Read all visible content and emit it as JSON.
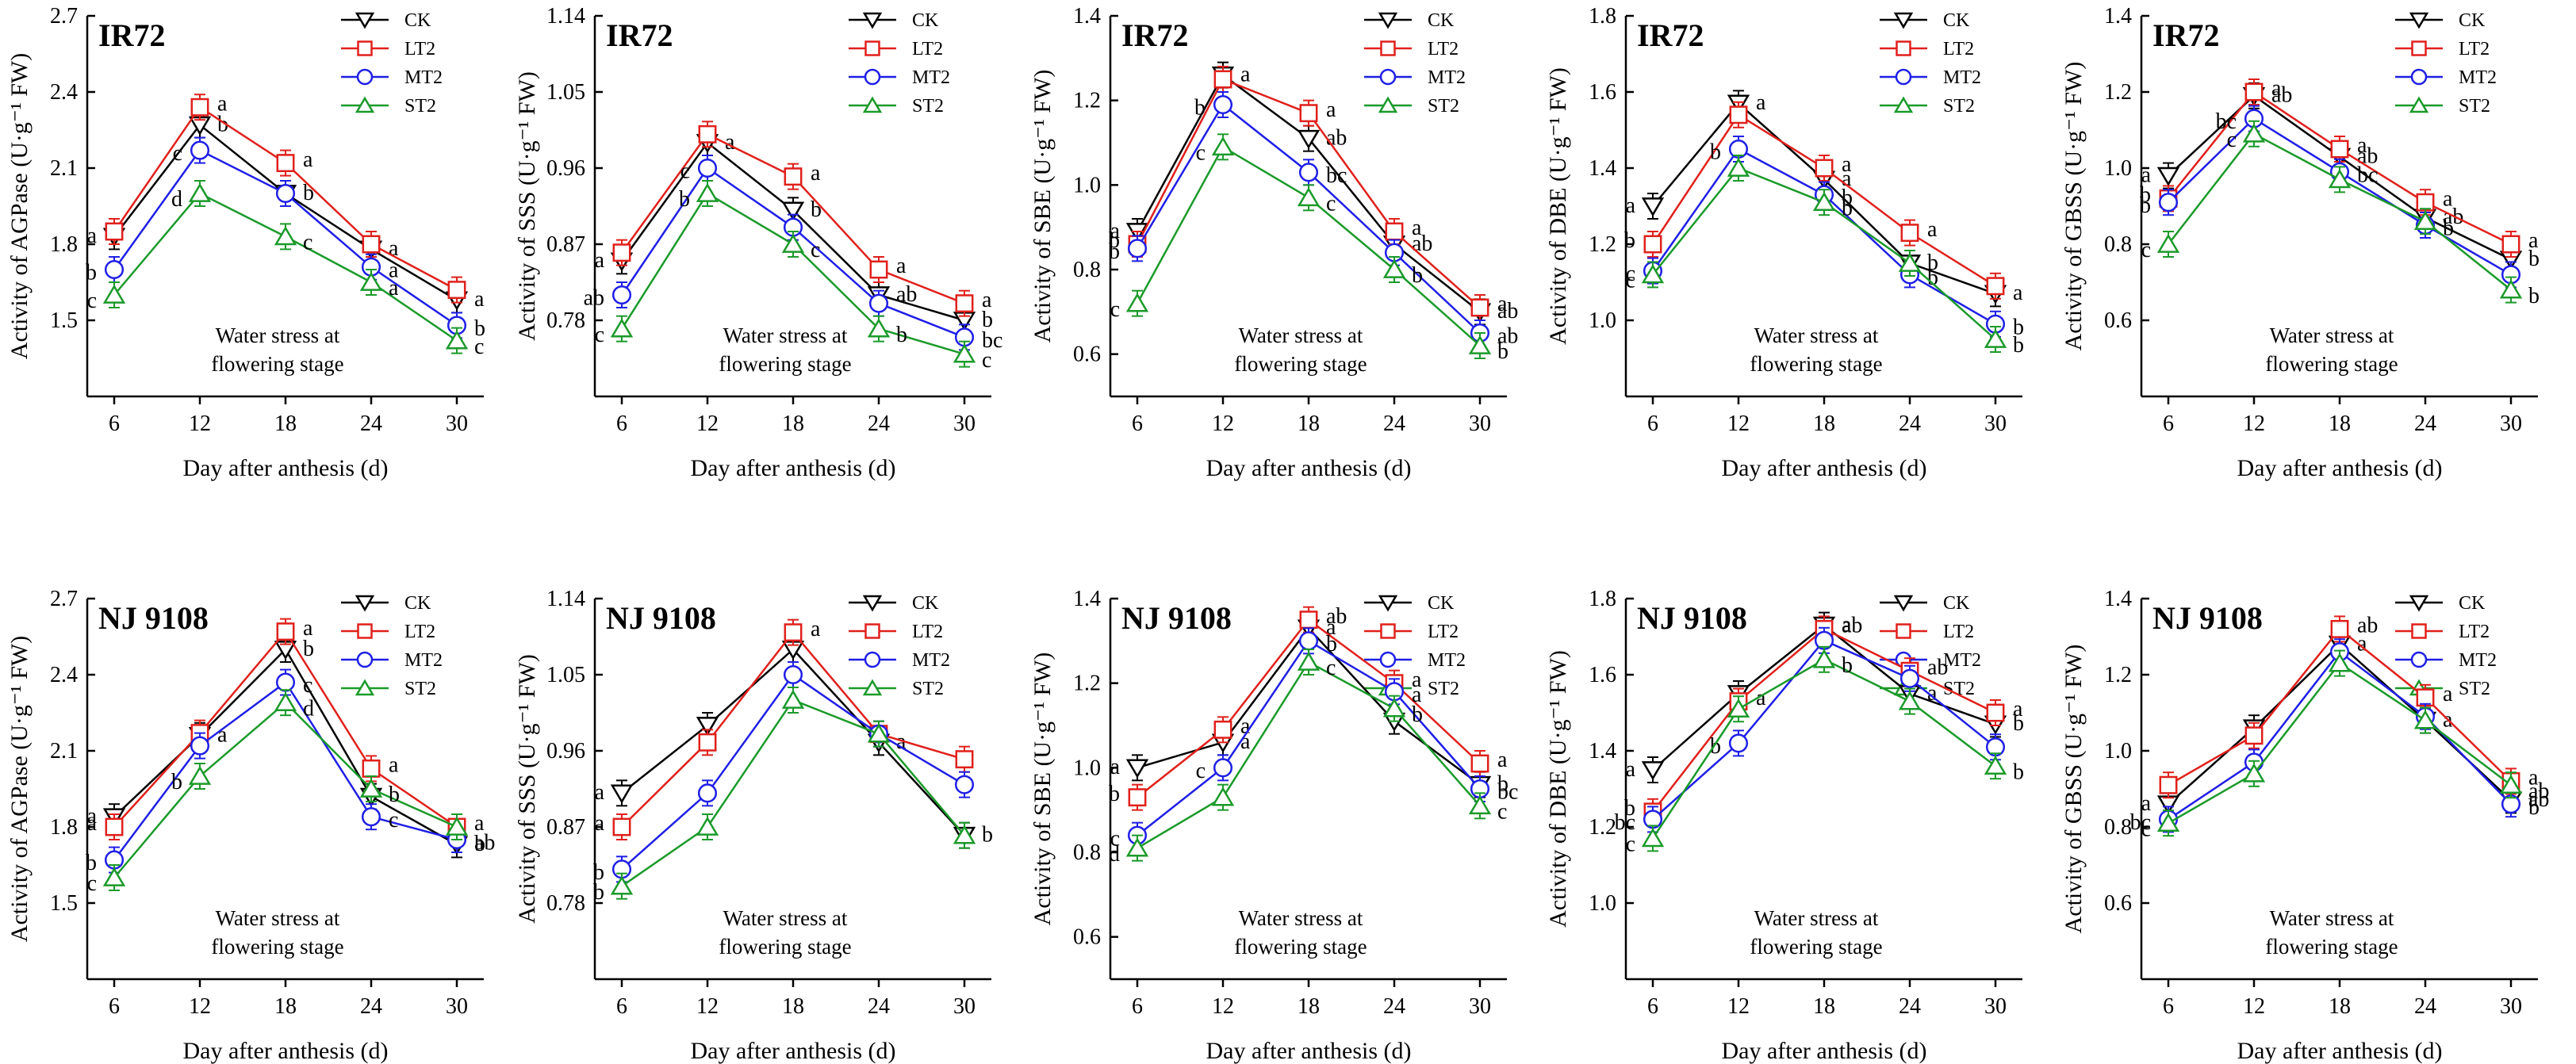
{
  "figure": {
    "xlabel": "Day after anthesis (d)",
    "annotation": [
      "Water stress at",
      "flowering stage"
    ],
    "legend": [
      "CK",
      "LT2",
      "MT2",
      "ST2"
    ],
    "colors": {
      "CK": "#000000",
      "LT2": "#e0201b",
      "MT2": "#1f1fe6",
      "ST2": "#1b9a2a"
    }
  },
  "chart_data": [
    {
      "type": "line",
      "title": "IR72",
      "ylabel": "Activity of AGPase (U·g⁻¹ FW)",
      "x": [
        6,
        12,
        18,
        24,
        30
      ],
      "ylim": [
        1.2,
        2.7
      ],
      "yticks": [
        "1.5",
        "1.8",
        "2.1",
        "2.4",
        "2.7"
      ],
      "series": [
        {
          "name": "CK",
          "values": [
            1.83,
            2.27,
            2.0,
            1.78,
            1.58
          ],
          "sig": [
            "a",
            "b",
            "b",
            "a",
            "a"
          ]
        },
        {
          "name": "LT2",
          "values": [
            1.85,
            2.34,
            2.12,
            1.8,
            1.62
          ],
          "sig": [
            "",
            "a",
            "a",
            "",
            ""
          ]
        },
        {
          "name": "MT2",
          "values": [
            1.7,
            2.17,
            2.0,
            1.71,
            1.48
          ],
          "sig": [
            "b",
            "c",
            "",
            "a",
            "b"
          ]
        },
        {
          "name": "ST2",
          "values": [
            1.6,
            2.0,
            1.83,
            1.65,
            1.42
          ],
          "sig": [
            "c",
            "d",
            "c",
            "a",
            "c"
          ]
        }
      ]
    },
    {
      "type": "line",
      "title": "IR72",
      "ylabel": "Activity of SSS (U·g⁻¹ FW)",
      "x": [
        6,
        12,
        18,
        24,
        30
      ],
      "ylim": [
        0.69,
        1.14
      ],
      "yticks": [
        "0.78",
        "0.87",
        "0.96",
        "1.05",
        "1.14"
      ],
      "series": [
        {
          "name": "CK",
          "values": [
            0.85,
            0.99,
            0.91,
            0.81,
            0.78
          ],
          "sig": [
            "a",
            "a",
            "b",
            "ab",
            "b"
          ]
        },
        {
          "name": "LT2",
          "values": [
            0.86,
            1.0,
            0.95,
            0.84,
            0.8
          ],
          "sig": [
            "",
            "",
            "a",
            "a",
            "a"
          ]
        },
        {
          "name": "MT2",
          "values": [
            0.81,
            0.96,
            0.89,
            0.8,
            0.76
          ],
          "sig": [
            "ab",
            "c",
            "",
            "",
            "bc"
          ]
        },
        {
          "name": "ST2",
          "values": [
            0.77,
            0.93,
            0.87,
            0.77,
            0.74
          ],
          "sig": [
            "c",
            "b",
            "c",
            "b",
            "c"
          ]
        }
      ]
    },
    {
      "type": "line",
      "title": "IR72",
      "ylabel": "Activity of SBE (U·g⁻¹ FW)",
      "x": [
        6,
        12,
        18,
        24,
        30
      ],
      "ylim": [
        0.5,
        1.4
      ],
      "yticks": [
        "0.6",
        "0.8",
        "1.0",
        "1.2",
        "1.4"
      ],
      "series": [
        {
          "name": "CK",
          "values": [
            0.89,
            1.26,
            1.11,
            0.86,
            0.7
          ],
          "sig": [
            "a",
            "a",
            "ab",
            "ab",
            "ab"
          ]
        },
        {
          "name": "LT2",
          "values": [
            0.86,
            1.25,
            1.17,
            0.89,
            0.71
          ],
          "sig": [
            "b",
            "",
            "a",
            "a",
            "a"
          ]
        },
        {
          "name": "MT2",
          "values": [
            0.85,
            1.19,
            1.03,
            0.84,
            0.65
          ],
          "sig": [
            "b",
            "b",
            "bc",
            "",
            "ab"
          ]
        },
        {
          "name": "ST2",
          "values": [
            0.72,
            1.09,
            0.97,
            0.8,
            0.62
          ],
          "sig": [
            "c",
            "c",
            "c",
            "b",
            "b"
          ]
        }
      ]
    },
    {
      "type": "line",
      "title": "IR72",
      "ylabel": "Activity of DBE (U·g⁻¹ FW)",
      "x": [
        6,
        12,
        18,
        24,
        30
      ],
      "ylim": [
        0.8,
        1.8
      ],
      "yticks": [
        "1.0",
        "1.2",
        "1.4",
        "1.6",
        "1.8"
      ],
      "series": [
        {
          "name": "CK",
          "values": [
            1.3,
            1.57,
            1.37,
            1.15,
            1.07
          ],
          "sig": [
            "a",
            "a",
            "a",
            "b",
            "a"
          ]
        },
        {
          "name": "LT2",
          "values": [
            1.2,
            1.54,
            1.4,
            1.23,
            1.09
          ],
          "sig": [
            "b",
            "",
            "a",
            "a",
            ""
          ]
        },
        {
          "name": "MT2",
          "values": [
            1.13,
            1.45,
            1.33,
            1.12,
            0.99
          ],
          "sig": [
            "c",
            "b",
            "b",
            "b",
            "b"
          ]
        },
        {
          "name": "ST2",
          "values": [
            1.12,
            1.4,
            1.31,
            1.15,
            0.95
          ],
          "sig": [
            "c",
            "",
            "b",
            "",
            "b"
          ]
        }
      ]
    },
    {
      "type": "line",
      "title": "IR72",
      "ylabel": "Activity of GBSS (U·g⁻¹ FW)",
      "x": [
        6,
        12,
        18,
        24,
        30
      ],
      "ylim": [
        0.4,
        1.4
      ],
      "yticks": [
        "0.6",
        "0.8",
        "1.0",
        "1.2",
        "1.4"
      ],
      "series": [
        {
          "name": "CK",
          "values": [
            0.98,
            1.19,
            1.03,
            0.87,
            0.76
          ],
          "sig": [
            "a",
            "ab",
            "ab",
            "ab",
            "b"
          ]
        },
        {
          "name": "LT2",
          "values": [
            0.92,
            1.2,
            1.05,
            0.91,
            0.8
          ],
          "sig": [
            "b",
            "a",
            "a",
            "a",
            "a"
          ]
        },
        {
          "name": "MT2",
          "values": [
            0.91,
            1.13,
            0.99,
            0.85,
            0.72
          ],
          "sig": [
            "b",
            "bc",
            "bc",
            "b",
            ""
          ]
        },
        {
          "name": "ST2",
          "values": [
            0.8,
            1.09,
            0.97,
            0.86,
            0.68
          ],
          "sig": [
            "c",
            "c",
            "",
            "",
            "b"
          ]
        }
      ]
    },
    {
      "type": "line",
      "title": "NJ 9108",
      "ylabel": "Activity of AGPase (U·g⁻¹ FW)",
      "x": [
        6,
        12,
        18,
        24,
        30
      ],
      "ylim": [
        1.2,
        2.7
      ],
      "yticks": [
        "1.5",
        "1.8",
        "2.1",
        "2.4",
        "2.7"
      ],
      "series": [
        {
          "name": "CK",
          "values": [
            1.84,
            2.16,
            2.5,
            1.92,
            1.73
          ],
          "sig": [
            "a",
            "a",
            "b",
            "",
            "b"
          ]
        },
        {
          "name": "LT2",
          "values": [
            1.8,
            2.17,
            2.57,
            2.03,
            1.8
          ],
          "sig": [
            "a",
            "",
            "a",
            "a",
            "a"
          ]
        },
        {
          "name": "MT2",
          "values": [
            1.67,
            2.12,
            2.37,
            1.84,
            1.75
          ],
          "sig": [
            "b",
            "",
            "c",
            "c",
            "ab"
          ]
        },
        {
          "name": "ST2",
          "values": [
            1.6,
            2.0,
            2.29,
            1.95,
            1.8
          ],
          "sig": [
            "c",
            "b",
            "d",
            "b",
            ""
          ]
        }
      ]
    },
    {
      "type": "line",
      "title": "NJ 9108",
      "ylabel": "Activity of SSS (U·g⁻¹ FW)",
      "x": [
        6,
        12,
        18,
        24,
        30
      ],
      "ylim": [
        0.69,
        1.14
      ],
      "yticks": [
        "0.78",
        "0.87",
        "0.96",
        "1.05",
        "1.14"
      ],
      "series": [
        {
          "name": "CK",
          "values": [
            0.91,
            0.99,
            1.08,
            0.97,
            0.86
          ],
          "sig": [
            "a",
            "",
            "",
            "a",
            "b"
          ]
        },
        {
          "name": "LT2",
          "values": [
            0.87,
            0.97,
            1.1,
            0.98,
            0.95
          ],
          "sig": [
            "a",
            "",
            "a",
            "",
            ""
          ]
        },
        {
          "name": "MT2",
          "values": [
            0.82,
            0.91,
            1.05,
            0.98,
            0.92
          ],
          "sig": [
            "b",
            "",
            "",
            "",
            ""
          ]
        },
        {
          "name": "ST2",
          "values": [
            0.8,
            0.87,
            1.02,
            0.98,
            0.86
          ],
          "sig": [
            "b",
            "",
            "",
            "",
            ""
          ]
        }
      ]
    },
    {
      "type": "line",
      "title": "NJ 9108",
      "ylabel": "Activity of SBE (U·g⁻¹ FW)",
      "x": [
        6,
        12,
        18,
        24,
        30
      ],
      "ylim": [
        0.5,
        1.4
      ],
      "yticks": [
        "0.6",
        "0.8",
        "1.0",
        "1.2",
        "1.4"
      ],
      "series": [
        {
          "name": "CK",
          "values": [
            1.0,
            1.06,
            1.33,
            1.11,
            0.96
          ],
          "sig": [
            "a",
            "a",
            "a",
            "",
            "b"
          ]
        },
        {
          "name": "LT2",
          "values": [
            0.93,
            1.09,
            1.35,
            1.2,
            1.01
          ],
          "sig": [
            "b",
            "a",
            "ab",
            "a",
            "a"
          ]
        },
        {
          "name": "MT2",
          "values": [
            0.84,
            1.0,
            1.3,
            1.18,
            0.95
          ],
          "sig": [
            "c",
            "c",
            "b",
            "a",
            "bc"
          ]
        },
        {
          "name": "ST2",
          "values": [
            0.81,
            0.93,
            1.25,
            1.14,
            0.91
          ],
          "sig": [
            "d",
            "",
            "c",
            "b",
            "c"
          ]
        }
      ]
    },
    {
      "type": "line",
      "title": "NJ 9108",
      "ylabel": "Activity of DBE (U·g⁻¹ FW)",
      "x": [
        6,
        12,
        18,
        24,
        30
      ],
      "ylim": [
        0.8,
        1.8
      ],
      "yticks": [
        "1.0",
        "1.2",
        "1.4",
        "1.6",
        "1.8"
      ],
      "series": [
        {
          "name": "CK",
          "values": [
            1.35,
            1.55,
            1.73,
            1.55,
            1.47
          ],
          "sig": [
            "a",
            "",
            "a",
            "a",
            "b"
          ]
        },
        {
          "name": "LT2",
          "values": [
            1.24,
            1.53,
            1.72,
            1.61,
            1.5
          ],
          "sig": [
            "b",
            "a",
            "ab",
            "ab",
            "a"
          ]
        },
        {
          "name": "MT2",
          "values": [
            1.22,
            1.42,
            1.69,
            1.59,
            1.41
          ],
          "sig": [
            "bc",
            "b",
            "",
            "",
            ""
          ]
        },
        {
          "name": "ST2",
          "values": [
            1.17,
            1.51,
            1.64,
            1.53,
            1.36
          ],
          "sig": [
            "c",
            "",
            "b",
            "",
            "b"
          ]
        }
      ]
    },
    {
      "type": "line",
      "title": "NJ 9108",
      "ylabel": "Activity of GBSS (U·g⁻¹ FW)",
      "x": [
        6,
        12,
        18,
        24,
        30
      ],
      "ylim": [
        0.4,
        1.4
      ],
      "yticks": [
        "0.6",
        "0.8",
        "1.0",
        "1.2",
        "1.4"
      ],
      "series": [
        {
          "name": "CK",
          "values": [
            0.86,
            1.06,
            1.28,
            1.08,
            0.87
          ],
          "sig": [
            "a",
            "",
            "a",
            "a",
            "ab"
          ]
        },
        {
          "name": "LT2",
          "values": [
            0.91,
            1.04,
            1.32,
            1.14,
            0.92
          ],
          "sig": [
            "",
            "",
            "ab",
            "a",
            "a"
          ]
        },
        {
          "name": "MT2",
          "values": [
            0.82,
            0.97,
            1.26,
            1.09,
            0.86
          ],
          "sig": [
            "bc",
            "",
            "",
            "",
            "b"
          ]
        },
        {
          "name": "ST2",
          "values": [
            0.81,
            0.94,
            1.23,
            1.08,
            0.91
          ],
          "sig": [
            "c",
            "",
            "",
            "",
            "ab"
          ]
        }
      ]
    }
  ]
}
